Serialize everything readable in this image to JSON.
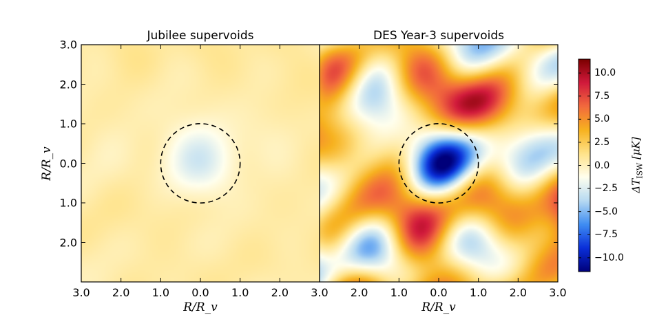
{
  "chart_data": {
    "type": "heatmap",
    "colormap": "diverging blue-white-yellow-red",
    "panels": [
      {
        "title": "Jubilee supervoids",
        "xlabel": "R/R_v",
        "ylabel": "R/R_v",
        "xlim": [
          -3.0,
          3.0
        ],
        "ylim": [
          -3.0,
          3.0
        ],
        "x_tick_values": [
          -3.0,
          -2.0,
          -1.0,
          0.0,
          1.0,
          2.0,
          3.0
        ],
        "x_tick_labels": [
          "3.0",
          "2.0",
          "1.0",
          "0.0",
          "1.0",
          "2.0",
          "3.0"
        ],
        "y_tick_values": [
          3.0,
          2.0,
          1.0,
          0.0,
          -1.0,
          -2.0
        ],
        "y_tick_labels": [
          "3.0",
          "2.0",
          "1.0",
          "0.0",
          "1.0",
          "2.0"
        ],
        "center_value": -2.5,
        "background_value": 0.5,
        "void_radius": 1.0,
        "noise_amplitude": 0.25
      },
      {
        "title": "DES Year-3 supervoids",
        "xlabel": "R/R_v",
        "xlim": [
          -3.0,
          3.0
        ],
        "ylim": [
          -3.0,
          3.0
        ],
        "x_tick_values": [
          -3.0,
          -2.0,
          -1.0,
          0.0,
          1.0,
          2.0,
          3.0
        ],
        "x_tick_labels": [
          "3.0",
          "2.0",
          "1.0",
          "0.0",
          "1.0",
          "2.0",
          "3.0"
        ],
        "center_value": -11.0,
        "background_value": 2.5,
        "void_radius": 1.0,
        "noise_amplitude": 3.0
      }
    ],
    "circle": {
      "radius": 1.0,
      "style": "dashed"
    },
    "colorbar": {
      "label_main": "ΔT",
      "label_sub": "ISW",
      "label_unit": "[μK]",
      "vmin": -11.5,
      "vmax": 11.5,
      "tick_values": [
        10.0,
        7.5,
        5.0,
        2.5,
        0.0,
        -2.5,
        -5.0,
        -7.5,
        -10.0
      ],
      "tick_labels": [
        "10.0",
        "7.5",
        "5.0",
        "2.5",
        "0.0",
        "−2.5",
        "−5.0",
        "−7.5",
        "−10.0"
      ],
      "colors": [
        "#00007a",
        "#0a2fd9",
        "#3f8df2",
        "#b7daf2",
        "#ffffee",
        "#ffe38a",
        "#f7b21f",
        "#f26a3d",
        "#d11a3c",
        "#7a0000"
      ]
    }
  }
}
